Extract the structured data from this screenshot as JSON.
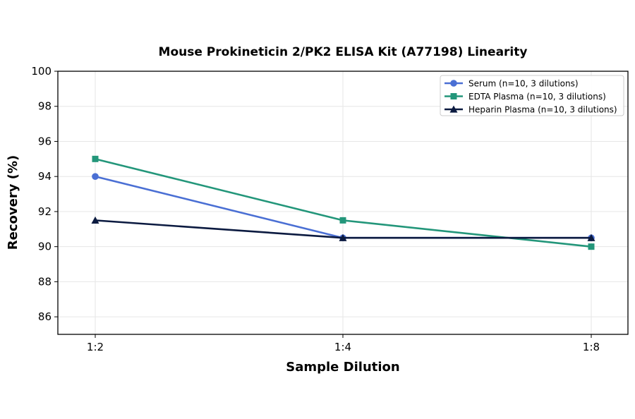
{
  "chart_data": {
    "type": "line",
    "title": "Mouse Prokineticin 2/PK2 ELISA Kit (A77198) Linearity",
    "xlabel": "Sample Dilution",
    "ylabel": "Recovery (%)",
    "categories": [
      "1:2",
      "1:4",
      "1:8"
    ],
    "ylim": [
      85,
      100
    ],
    "yticks": [
      86,
      88,
      90,
      92,
      94,
      96,
      98,
      100
    ],
    "grid": true,
    "legend_position": "top-right",
    "series": [
      {
        "name": "Serum (n=10, 3 dilutions)",
        "values": [
          94,
          90.5,
          90.5
        ],
        "color": "#4a6fd4",
        "marker": "circle"
      },
      {
        "name": "EDTA Plasma (n=10, 3 dilutions)",
        "values": [
          95,
          91.5,
          90
        ],
        "color": "#23967a",
        "marker": "square"
      },
      {
        "name": "Heparin Plasma (n=10, 3 dilutions)",
        "values": [
          91.5,
          90.5,
          90.5
        ],
        "color": "#0b1a40",
        "marker": "triangle"
      }
    ]
  }
}
